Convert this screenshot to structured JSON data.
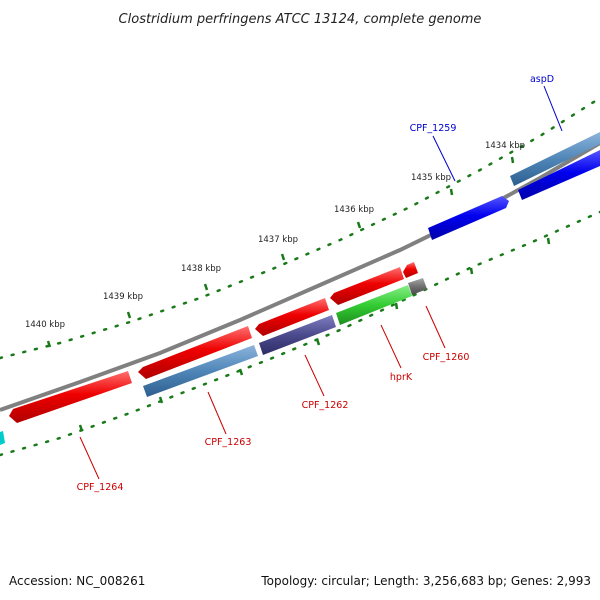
{
  "title": "Clostridium perfringens ATCC 13124, complete genome",
  "footer": {
    "accession": "Accession: NC_008261",
    "summary": "Topology: circular; Length: 3,256,683 bp; Genes: 2,993"
  },
  "ticks": [
    {
      "label": "1434 kbp"
    },
    {
      "label": "1435 kbp"
    },
    {
      "label": "1436 kbp"
    },
    {
      "label": "1437 kbp"
    },
    {
      "label": "1438 kbp"
    },
    {
      "label": "1439 kbp"
    },
    {
      "label": "1440 kbp"
    }
  ],
  "genes": [
    {
      "name": "aspD",
      "color": "#0000cc"
    },
    {
      "name": "CPF_1259",
      "color": "#0000cc"
    },
    {
      "name": "CPF_1260",
      "color": "#cc0000"
    },
    {
      "name": "hprK",
      "color": "#cc0000"
    },
    {
      "name": "CPF_1262",
      "color": "#cc0000"
    },
    {
      "name": "CPF_1263",
      "color": "#cc0000"
    },
    {
      "name": "CPF_1264",
      "color": "#cc0000"
    }
  ],
  "colors": {
    "backbone": "#808080",
    "tick_dots": "#1a7a1a",
    "forward_cds": "#0000ee",
    "reverse_cds": "#ee0000",
    "steel_blue": "#4f86b8",
    "dark_slate": "#4b4a8c",
    "green_cds": "#33cc33",
    "grey_cds": "#707070",
    "cyan_cds": "#00cccc"
  }
}
